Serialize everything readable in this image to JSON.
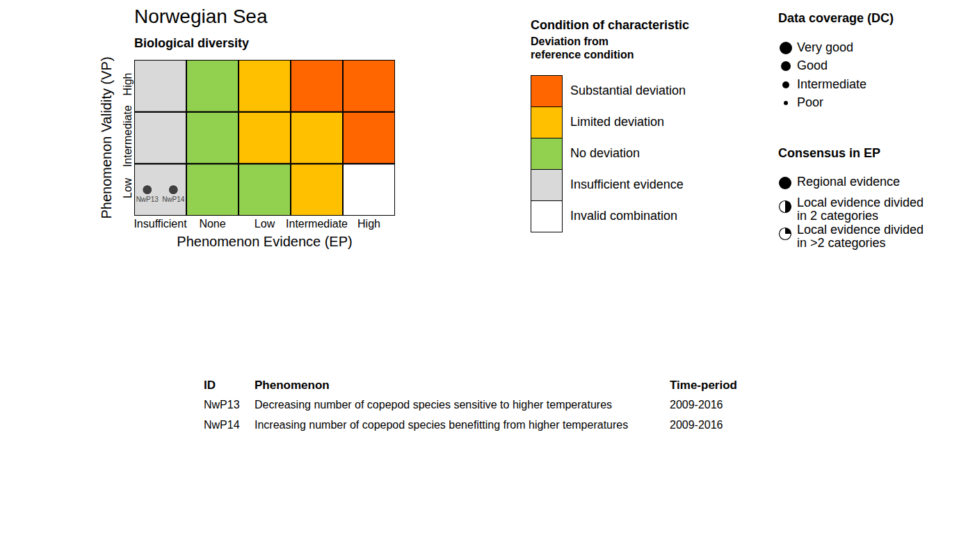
{
  "chart_data": {
    "type": "heatmap",
    "title": "Norwegian Sea",
    "subtitle": "Biological diversity",
    "x_label": "Phenomenon Evidence (EP)",
    "y_label": "Phenomenon Validity (VP)",
    "x_categories": [
      "Insufficient",
      "None",
      "Low",
      "Intermediate",
      "High"
    ],
    "y_categories": [
      "Low",
      "Intermediate",
      "High"
    ],
    "cells": [
      [
        "Insufficient evidence",
        "No deviation",
        "No deviation",
        "Limited deviation",
        "Invalid combination"
      ],
      [
        "Insufficient evidence",
        "No deviation",
        "Limited deviation",
        "Limited deviation",
        "Substantial deviation"
      ],
      [
        "Insufficient evidence",
        "No deviation",
        "Limited deviation",
        "Substantial deviation",
        "Substantial deviation"
      ]
    ],
    "condition_legend": {
      "title": "Condition of characteristic",
      "subtitle": [
        "Deviation from",
        "reference condition"
      ],
      "items": [
        {
          "label": "Substantial deviation",
          "color": "#ff6600"
        },
        {
          "label": "Limited deviation",
          "color": "#ffc000"
        },
        {
          "label": "No deviation",
          "color": "#92d050"
        },
        {
          "label": "Insufficient evidence",
          "color": "#d9d9d9"
        },
        {
          "label": "Invalid combination",
          "color": "#ffffff"
        }
      ]
    },
    "points": [
      {
        "id": "NwP13",
        "x": "Insufficient",
        "y": "Low",
        "coverage": "Good",
        "consensus": "Regional evidence"
      },
      {
        "id": "NwP14",
        "x": "Insufficient",
        "y": "Low",
        "coverage": "Good",
        "consensus": "Regional evidence"
      }
    ],
    "data_coverage": {
      "title": "Data coverage (DC)",
      "items": [
        "Very good",
        "Good",
        "Intermediate",
        "Poor"
      ]
    },
    "consensus": {
      "title": "Consensus in EP",
      "items": [
        [
          "Regional evidence"
        ],
        [
          "Local evidence divided",
          "in 2 categories"
        ],
        [
          "Local evidence divided",
          "in >2 categories"
        ]
      ]
    },
    "table": {
      "headers": [
        "ID",
        "Phenomenon",
        "Time-period"
      ],
      "rows": [
        [
          "NwP13",
          "Decreasing number of copepod species sensitive to higher temperatures",
          "2009-2016"
        ],
        [
          "NwP14",
          "Increasing number of copepod species benefitting from higher temperatures",
          "2009-2016"
        ]
      ]
    }
  }
}
